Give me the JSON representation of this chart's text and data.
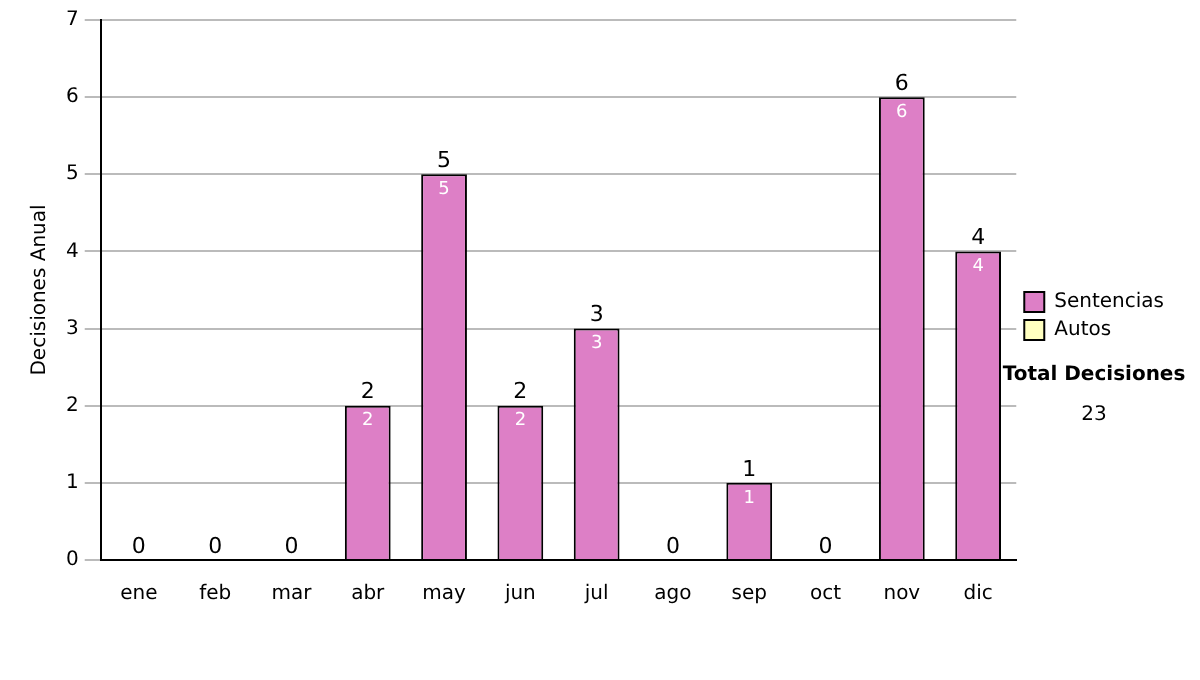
{
  "chart_data": {
    "type": "bar",
    "ylabel": "Decisiones Anual",
    "categories": [
      "ene",
      "feb",
      "mar",
      "abr",
      "may",
      "jun",
      "jul",
      "ago",
      "sep",
      "oct",
      "nov",
      "dic"
    ],
    "series": [
      {
        "name": "Sentencias",
        "color": "#dd7fc6",
        "values": [
          0,
          0,
          0,
          2,
          5,
          2,
          3,
          0,
          1,
          0,
          6,
          4
        ],
        "value_labels": [
          null,
          null,
          null,
          "2",
          "5",
          "2",
          "3",
          null,
          "1",
          null,
          "6",
          "4"
        ]
      },
      {
        "name": "Autos",
        "color": "#ffffc0",
        "values": [
          0,
          0,
          0,
          0,
          0,
          0,
          0,
          0,
          0,
          0,
          0,
          0
        ]
      }
    ],
    "stacked": true,
    "totals": [
      "0",
      "0",
      "0",
      "2",
      "5",
      "2",
      "3",
      "0",
      "1",
      "0",
      "6",
      "4"
    ],
    "ylim": [
      0,
      7
    ],
    "yticks": [
      0,
      1,
      2,
      3,
      4,
      5,
      6,
      7
    ],
    "grid": "y",
    "legend": "right",
    "annotations": [
      "Total Decisiones",
      "23"
    ]
  }
}
